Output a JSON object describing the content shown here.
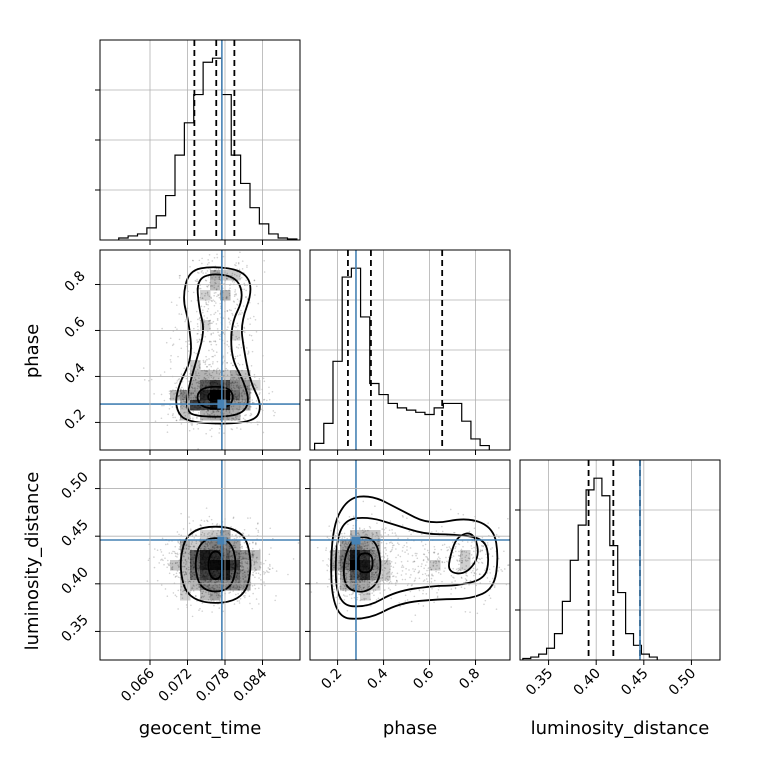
{
  "chart_data": {
    "type": "corner",
    "parameters": [
      {
        "name": "geocent_time",
        "range": [
          0.058,
          0.09
        ],
        "ticks": [
          0.066,
          0.072,
          0.078,
          0.084
        ],
        "tick_labels": [
          "0.066",
          "0.072",
          "0.078",
          "0.084"
        ],
        "truth": 0.0775
      },
      {
        "name": "phase",
        "range": [
          0.08,
          0.95
        ],
        "ticks": [
          0.2,
          0.4,
          0.6,
          0.8
        ],
        "tick_labels": [
          "0.2",
          "0.4",
          "0.6",
          "0.8"
        ],
        "truth": 0.28
      },
      {
        "name": "luminosity_distance",
        "range": [
          0.32,
          0.53
        ],
        "ticks": [
          0.35,
          0.4,
          0.45,
          0.5
        ],
        "tick_labels": [
          "0.35",
          "0.40",
          "0.45",
          "0.50"
        ],
        "truth": 0.446
      }
    ],
    "histograms": [
      {
        "param": "geocent_time",
        "bin_start": 0.061,
        "bin_width": 0.0015,
        "counts": [
          1,
          2,
          3,
          6,
          12,
          22,
          42,
          58,
          72,
          88,
          90,
          72,
          42,
          28,
          16,
          8,
          3,
          1,
          0.5
        ],
        "quantiles": [
          0.0731,
          0.0766,
          0.0795
        ]
      },
      {
        "param": "phase",
        "bin_start": 0.1,
        "bin_width": 0.04,
        "counts": [
          3,
          12,
          40,
          78,
          82,
          60,
          30,
          25,
          21,
          19,
          18,
          17,
          16,
          19,
          21,
          21,
          13,
          5,
          2
        ],
        "quantiles": [
          0.245,
          0.345,
          0.655
        ]
      },
      {
        "param": "luminosity_distance",
        "bin_start": 0.323,
        "bin_width": 0.0083,
        "counts": [
          0.5,
          1,
          2,
          4,
          9,
          20,
          34,
          46,
          58,
          62,
          56,
          39,
          23,
          9,
          5,
          2,
          1
        ],
        "quantiles": [
          0.392,
          0.418,
          0.446
        ]
      }
    ],
    "contour_levels": 3,
    "truth_color": "#4682b4"
  }
}
